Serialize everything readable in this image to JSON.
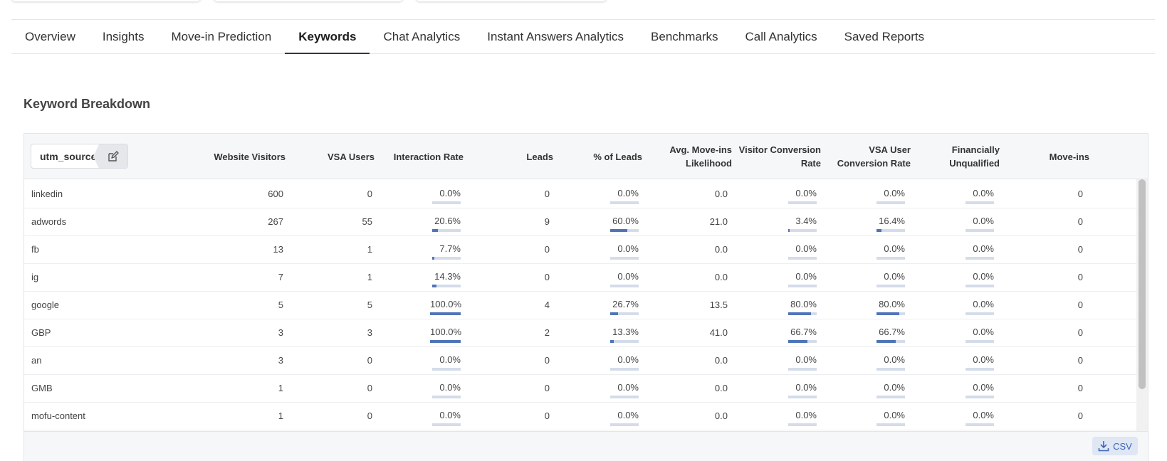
{
  "tabs": [
    "Overview",
    "Insights",
    "Move-in Prediction",
    "Keywords",
    "Chat Analytics",
    "Instant Answers Analytics",
    "Benchmarks",
    "Call Analytics",
    "Saved Reports"
  ],
  "active_tab": "Keywords",
  "section_title": "Keyword Breakdown",
  "dimension_label": "utm_source",
  "columns": [
    {
      "line1": "Website Visitors",
      "line2": ""
    },
    {
      "line1": "VSA Users",
      "line2": ""
    },
    {
      "line1": "Interaction Rate",
      "line2": ""
    },
    {
      "line1": "Leads",
      "line2": ""
    },
    {
      "line1": "% of Leads",
      "line2": ""
    },
    {
      "line1": "Avg. Move-ins",
      "line2": "Likelihood"
    },
    {
      "line1": "Visitor Conversion",
      "line2": "Rate"
    },
    {
      "line1": "VSA User",
      "line2": "Conversion Rate"
    },
    {
      "line1": "Financially",
      "line2": "Unqualified"
    },
    {
      "line1": "Move-ins",
      "line2": ""
    }
  ],
  "rows": [
    {
      "name": "linkedin",
      "website_visitors": "600",
      "vsa_users": "0",
      "interaction_rate": "0.0%",
      "interaction_rate_pct": 0,
      "leads": "0",
      "pct_leads": "0.0%",
      "pct_leads_pct": 0,
      "avg_movein": "0.0",
      "visitor_conv": "0.0%",
      "visitor_conv_pct": 0,
      "vsa_conv": "0.0%",
      "vsa_conv_pct": 0,
      "fin_unqualified": "0.0%",
      "fin_unqualified_pct": 0,
      "move_ins": "0"
    },
    {
      "name": "adwords",
      "website_visitors": "267",
      "vsa_users": "55",
      "interaction_rate": "20.6%",
      "interaction_rate_pct": 20.6,
      "leads": "9",
      "pct_leads": "60.0%",
      "pct_leads_pct": 60,
      "avg_movein": "21.0",
      "visitor_conv": "3.4%",
      "visitor_conv_pct": 3.4,
      "vsa_conv": "16.4%",
      "vsa_conv_pct": 16.4,
      "fin_unqualified": "0.0%",
      "fin_unqualified_pct": 0,
      "move_ins": "0"
    },
    {
      "name": "fb",
      "website_visitors": "13",
      "vsa_users": "1",
      "interaction_rate": "7.7%",
      "interaction_rate_pct": 7.7,
      "leads": "0",
      "pct_leads": "0.0%",
      "pct_leads_pct": 0,
      "avg_movein": "0.0",
      "visitor_conv": "0.0%",
      "visitor_conv_pct": 0,
      "vsa_conv": "0.0%",
      "vsa_conv_pct": 0,
      "fin_unqualified": "0.0%",
      "fin_unqualified_pct": 0,
      "move_ins": "0"
    },
    {
      "name": "ig",
      "website_visitors": "7",
      "vsa_users": "1",
      "interaction_rate": "14.3%",
      "interaction_rate_pct": 14.3,
      "leads": "0",
      "pct_leads": "0.0%",
      "pct_leads_pct": 0,
      "avg_movein": "0.0",
      "visitor_conv": "0.0%",
      "visitor_conv_pct": 0,
      "vsa_conv": "0.0%",
      "vsa_conv_pct": 0,
      "fin_unqualified": "0.0%",
      "fin_unqualified_pct": 0,
      "move_ins": "0"
    },
    {
      "name": "google",
      "website_visitors": "5",
      "vsa_users": "5",
      "interaction_rate": "100.0%",
      "interaction_rate_pct": 100,
      "leads": "4",
      "pct_leads": "26.7%",
      "pct_leads_pct": 26.7,
      "avg_movein": "13.5",
      "visitor_conv": "80.0%",
      "visitor_conv_pct": 80,
      "vsa_conv": "80.0%",
      "vsa_conv_pct": 80,
      "fin_unqualified": "0.0%",
      "fin_unqualified_pct": 0,
      "move_ins": "0"
    },
    {
      "name": "GBP",
      "website_visitors": "3",
      "vsa_users": "3",
      "interaction_rate": "100.0%",
      "interaction_rate_pct": 100,
      "leads": "2",
      "pct_leads": "13.3%",
      "pct_leads_pct": 13.3,
      "avg_movein": "41.0",
      "visitor_conv": "66.7%",
      "visitor_conv_pct": 66.7,
      "vsa_conv": "66.7%",
      "vsa_conv_pct": 66.7,
      "fin_unqualified": "0.0%",
      "fin_unqualified_pct": 0,
      "move_ins": "0"
    },
    {
      "name": "an",
      "website_visitors": "3",
      "vsa_users": "0",
      "interaction_rate": "0.0%",
      "interaction_rate_pct": 0,
      "leads": "0",
      "pct_leads": "0.0%",
      "pct_leads_pct": 0,
      "avg_movein": "0.0",
      "visitor_conv": "0.0%",
      "visitor_conv_pct": 0,
      "vsa_conv": "0.0%",
      "vsa_conv_pct": 0,
      "fin_unqualified": "0.0%",
      "fin_unqualified_pct": 0,
      "move_ins": "0"
    },
    {
      "name": "GMB",
      "website_visitors": "1",
      "vsa_users": "0",
      "interaction_rate": "0.0%",
      "interaction_rate_pct": 0,
      "leads": "0",
      "pct_leads": "0.0%",
      "pct_leads_pct": 0,
      "avg_movein": "0.0",
      "visitor_conv": "0.0%",
      "visitor_conv_pct": 0,
      "vsa_conv": "0.0%",
      "vsa_conv_pct": 0,
      "fin_unqualified": "0.0%",
      "fin_unqualified_pct": 0,
      "move_ins": "0"
    },
    {
      "name": "mofu-content",
      "website_visitors": "1",
      "vsa_users": "0",
      "interaction_rate": "0.0%",
      "interaction_rate_pct": 0,
      "leads": "0",
      "pct_leads": "0.0%",
      "pct_leads_pct": 0,
      "avg_movein": "0.0",
      "visitor_conv": "0.0%",
      "visitor_conv_pct": 0,
      "vsa_conv": "0.0%",
      "vsa_conv_pct": 0,
      "fin_unqualified": "0.0%",
      "fin_unqualified_pct": 0,
      "move_ins": "0"
    }
  ],
  "csv_label": "CSV",
  "icons": {
    "edit": "edit-icon",
    "download": "download-icon"
  },
  "colors": {
    "bar_fill": "#4f74b8",
    "bar_track": "#d4dcea",
    "csv_text": "#3d66b5",
    "csv_bg": "#dfe6f4"
  }
}
